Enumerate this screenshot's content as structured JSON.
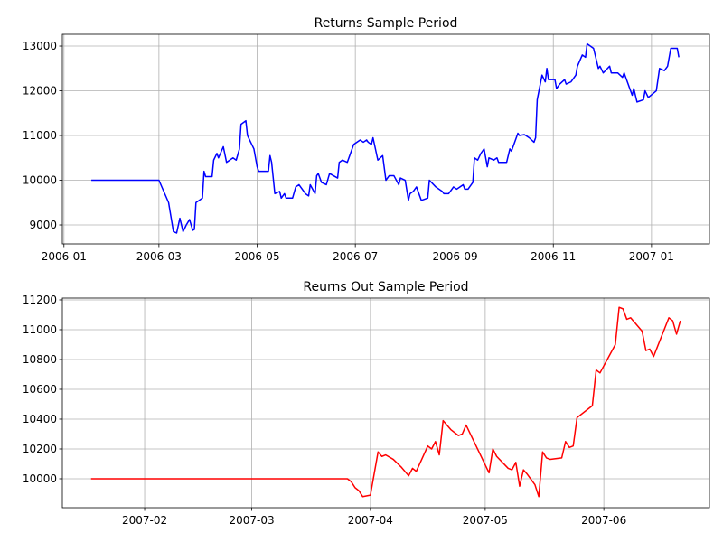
{
  "chart_data": [
    {
      "type": "line",
      "title": "Returns Sample Period",
      "color": "#0000ff",
      "grid": true,
      "x": [
        17,
        59,
        62,
        65,
        68,
        70,
        72,
        74,
        76,
        78,
        80,
        81,
        82,
        86,
        87,
        88,
        92,
        93,
        95,
        96,
        99,
        101,
        105,
        107,
        109,
        110,
        113,
        114,
        116,
        118,
        120,
        121,
        127,
        128,
        129,
        131,
        134,
        135,
        137,
        138,
        142,
        144,
        146,
        150,
        152,
        153,
        156,
        157,
        158,
        160,
        163,
        165,
        170,
        171,
        173,
        176,
        178,
        180,
        184,
        186,
        188,
        189,
        191,
        192,
        195,
        198,
        200,
        202,
        205,
        208,
        209,
        212,
        214,
        215,
        217,
        219,
        222,
        226,
        227,
        231,
        235,
        236,
        239,
        241,
        242,
        244,
        248,
        249,
        251,
        254,
        255,
        257,
        259,
        261,
        263,
        264,
        267,
        269,
        270,
        275,
        277,
        278,
        282,
        283,
        286,
        289,
        292,
        293,
        294,
        297,
        299,
        300,
        301,
        305,
        306,
        308,
        311,
        312,
        315,
        318,
        319,
        322,
        324,
        325,
        329,
        331,
        332,
        333,
        335,
        339,
        340,
        344,
        347,
        348,
        350,
        353,
        354,
        356,
        360,
        361,
        363,
        368,
        370,
        373,
        375,
        377,
        381,
        382
      ],
      "values": [
        10000,
        10000,
        9750,
        9500,
        8850,
        8820,
        9150,
        8850,
        9000,
        9120,
        8880,
        8900,
        9500,
        9600,
        10200,
        10080,
        10080,
        10450,
        10600,
        10500,
        10750,
        10400,
        10500,
        10450,
        10700,
        11250,
        11330,
        11000,
        10850,
        10700,
        10300,
        10200,
        10200,
        10550,
        10400,
        9700,
        9750,
        9600,
        9700,
        9600,
        9600,
        9850,
        9900,
        9700,
        9650,
        9900,
        9700,
        10100,
        10150,
        9950,
        9900,
        10150,
        10050,
        10400,
        10450,
        10400,
        10600,
        10800,
        10900,
        10850,
        10900,
        10850,
        10800,
        10950,
        10450,
        10550,
        10000,
        10100,
        10100,
        9900,
        10050,
        10000,
        9550,
        9700,
        9750,
        9850,
        9550,
        9600,
        10000,
        9850,
        9750,
        9700,
        9700,
        9800,
        9850,
        9800,
        9900,
        9800,
        9800,
        9950,
        10500,
        10450,
        10600,
        10700,
        10300,
        10500,
        10450,
        10500,
        10400,
        10400,
        10700,
        10650,
        11050,
        11000,
        11020,
        10950,
        10850,
        10950,
        11800,
        12350,
        12200,
        12500,
        12250,
        12250,
        12050,
        12150,
        12250,
        12150,
        12200,
        12350,
        12550,
        12800,
        12750,
        13050,
        12950,
        12650,
        12500,
        12550,
        12400,
        12550,
        12400,
        12400,
        12300,
        12400,
        12200,
        11900,
        12050,
        11750,
        11800,
        12000,
        11850,
        12000,
        12500,
        12450,
        12550,
        12950,
        12950,
        12750
      ],
      "xlim": [
        -1,
        401
      ],
      "ylim": [
        8576,
        13263
      ],
      "xticks": [
        {
          "value": 0,
          "label": "2006-01"
        },
        {
          "value": 59,
          "label": "2006-03"
        },
        {
          "value": 120,
          "label": "2006-05"
        },
        {
          "value": 181,
          "label": "2006-07"
        },
        {
          "value": 243,
          "label": "2006-09"
        },
        {
          "value": 304,
          "label": "2006-11"
        },
        {
          "value": 365,
          "label": "2007-01"
        }
      ],
      "yticks": [
        9000,
        10000,
        11000,
        12000,
        13000
      ]
    },
    {
      "type": "line",
      "title": "Reurns Out Sample Period",
      "color": "#ff0000",
      "grid": true,
      "x": [
        17,
        84,
        85,
        86,
        87,
        88,
        90,
        92,
        93,
        94,
        96,
        98,
        100,
        101,
        102,
        105,
        106,
        107,
        108,
        109,
        111,
        113,
        114,
        115,
        121,
        122,
        123,
        126,
        127,
        128,
        129,
        130,
        131,
        133,
        134,
        135,
        136,
        137,
        140,
        141,
        142,
        143,
        144,
        148,
        149,
        150,
        154,
        155,
        156,
        157,
        158,
        161,
        162,
        163,
        164,
        168,
        169,
        170,
        171
      ],
      "values": [
        10000,
        10000,
        9980,
        9940,
        9920,
        9880,
        9890,
        10180,
        10150,
        10160,
        10130,
        10080,
        10020,
        10070,
        10050,
        10220,
        10200,
        10250,
        10160,
        10390,
        10330,
        10290,
        10300,
        10360,
        10040,
        10200,
        10150,
        10070,
        10060,
        10110,
        9950,
        10060,
        10030,
        9960,
        9880,
        10180,
        10140,
        10130,
        10140,
        10250,
        10210,
        10220,
        10410,
        10490,
        10730,
        10710,
        10900,
        11150,
        11140,
        11070,
        11080,
        10990,
        10860,
        10870,
        10820,
        11080,
        11060,
        10970,
        11060
      ],
      "xlim": [
        9.5,
        178.6
      ],
      "ylim": [
        9806,
        11212
      ],
      "xticks": [
        {
          "value": 31,
          "label": "2007-02"
        },
        {
          "value": 59,
          "label": "2007-03"
        },
        {
          "value": 90,
          "label": "2007-04"
        },
        {
          "value": 120,
          "label": "2007-05"
        },
        {
          "value": 151,
          "label": "2007-06"
        }
      ],
      "yticks": [
        10000,
        10200,
        10400,
        10600,
        10800,
        11000,
        11200
      ]
    }
  ]
}
